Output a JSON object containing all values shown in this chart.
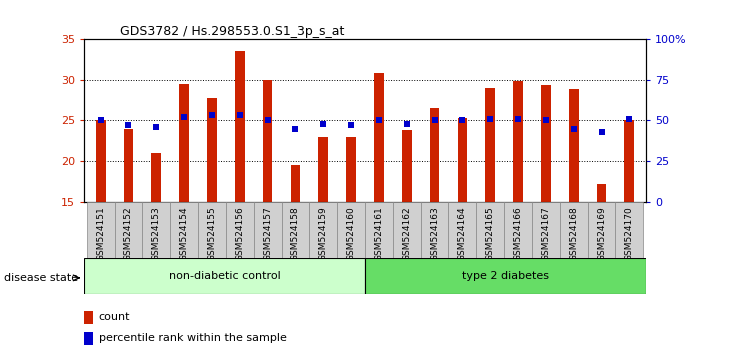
{
  "title": "GDS3782 / Hs.298553.0.S1_3p_s_at",
  "samples": [
    "GSM524151",
    "GSM524152",
    "GSM524153",
    "GSM524154",
    "GSM524155",
    "GSM524156",
    "GSM524157",
    "GSM524158",
    "GSM524159",
    "GSM524160",
    "GSM524161",
    "GSM524162",
    "GSM524163",
    "GSM524164",
    "GSM524165",
    "GSM524166",
    "GSM524167",
    "GSM524168",
    "GSM524169",
    "GSM524170"
  ],
  "counts": [
    25.0,
    24.0,
    21.0,
    29.5,
    27.8,
    33.5,
    30.0,
    19.5,
    23.0,
    23.0,
    30.8,
    23.8,
    26.5,
    25.3,
    29.0,
    29.8,
    29.3,
    28.8,
    17.2,
    25.0
  ],
  "percentiles": [
    50,
    47,
    46,
    52,
    53,
    53,
    50,
    45,
    48,
    47,
    50,
    48,
    50,
    50,
    51,
    51,
    50,
    45,
    43,
    51
  ],
  "bar_color": "#cc2200",
  "dot_color": "#0000cc",
  "ylim_left": [
    15,
    35
  ],
  "ylim_right": [
    0,
    100
  ],
  "yticks_left": [
    15,
    20,
    25,
    30,
    35
  ],
  "yticks_right": [
    0,
    25,
    50,
    75,
    100
  ],
  "ytick_labels_right": [
    "0",
    "25",
    "50",
    "75",
    "100%"
  ],
  "group1_label": "non-diabetic control",
  "group2_label": "type 2 diabetes",
  "group1_count": 10,
  "group2_count": 10,
  "disease_state_label": "disease state",
  "legend_count_label": "count",
  "legend_percentile_label": "percentile rank within the sample",
  "group1_color": "#ccffcc",
  "group2_color": "#66dd66",
  "label_bg_color": "#d0d0d0",
  "bar_width": 0.35,
  "dot_size": 18,
  "bg_color": "#ffffff"
}
